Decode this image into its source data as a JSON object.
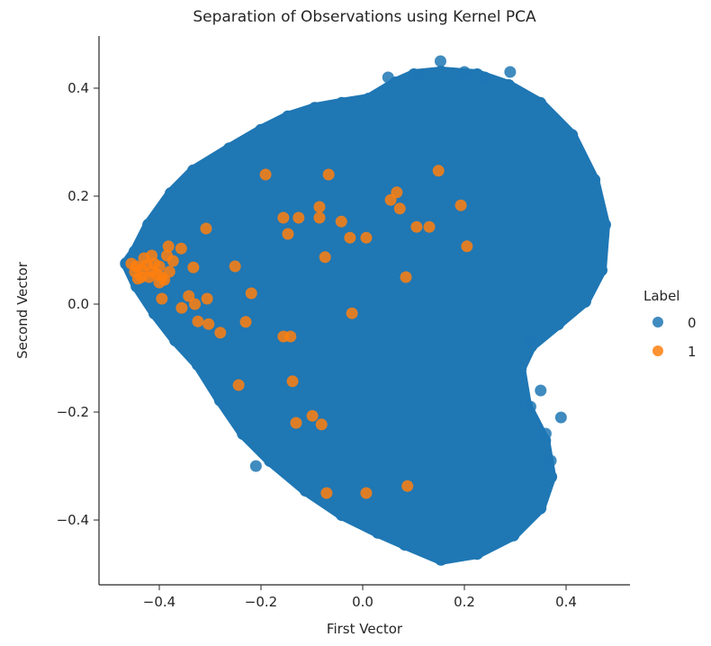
{
  "chart_data": {
    "type": "scatter",
    "title": "Separation of Observations using Kernel PCA",
    "xlabel": "First Vector",
    "ylabel": "Second Vector",
    "xlim": [
      -0.52,
      0.53
    ],
    "ylim": [
      -0.52,
      0.5
    ],
    "xticks": [
      -0.4,
      -0.2,
      0.0,
      0.2,
      0.4
    ],
    "xtick_labels": [
      "−0.4",
      "−0.2",
      "0.0",
      "0.2",
      "0.4"
    ],
    "yticks": [
      0.4,
      0.2,
      0.0,
      -0.2,
      -0.4
    ],
    "ytick_labels": [
      "0.4",
      "0.2",
      "0.0",
      "−0.2",
      "−0.4"
    ],
    "grid": false,
    "legend": {
      "title": "Label",
      "placement": "right",
      "entries": [
        "0",
        "1"
      ]
    },
    "series": [
      {
        "name": "0",
        "color": "#1f77b4",
        "note_region_outline": true,
        "region_outline": [
          [
            -0.465,
            0.075
          ],
          [
            -0.448,
            0.097
          ],
          [
            -0.421,
            0.147
          ],
          [
            -0.377,
            0.205
          ],
          [
            -0.333,
            0.247
          ],
          [
            -0.262,
            0.288
          ],
          [
            -0.2,
            0.322
          ],
          [
            -0.147,
            0.347
          ],
          [
            -0.094,
            0.363
          ],
          [
            -0.041,
            0.372
          ],
          [
            0.012,
            0.38
          ],
          [
            0.065,
            0.41
          ],
          [
            0.101,
            0.425
          ],
          [
            0.154,
            0.43
          ],
          [
            0.225,
            0.425
          ],
          [
            0.287,
            0.405
          ],
          [
            0.349,
            0.372
          ],
          [
            0.411,
            0.313
          ],
          [
            0.455,
            0.23
          ],
          [
            0.476,
            0.147
          ],
          [
            0.469,
            0.063
          ],
          [
            0.437,
            0.005
          ],
          [
            0.384,
            -0.037
          ],
          [
            0.331,
            -0.078
          ],
          [
            0.31,
            -0.12
          ],
          [
            0.322,
            -0.187
          ],
          [
            0.358,
            -0.253
          ],
          [
            0.37,
            -0.32
          ],
          [
            0.349,
            -0.378
          ],
          [
            0.296,
            -0.428
          ],
          [
            0.225,
            -0.462
          ],
          [
            0.154,
            -0.473
          ],
          [
            0.083,
            -0.445
          ],
          [
            0.03,
            -0.423
          ],
          [
            -0.041,
            -0.39
          ],
          [
            -0.112,
            -0.345
          ],
          [
            -0.182,
            -0.29
          ],
          [
            -0.235,
            -0.24
          ],
          [
            -0.28,
            -0.178
          ],
          [
            -0.324,
            -0.112
          ],
          [
            -0.368,
            -0.067
          ],
          [
            -0.409,
            -0.017
          ],
          [
            -0.444,
            0.033
          ]
        ],
        "outliers": [
          [
            0.153,
            0.45
          ],
          [
            0.29,
            0.43
          ],
          [
            0.2,
            0.43
          ],
          [
            0.11,
            0.425
          ],
          [
            0.05,
            0.42
          ],
          [
            0.24,
            0.42
          ],
          [
            0.33,
            -0.19
          ],
          [
            0.35,
            -0.16
          ],
          [
            0.39,
            -0.21
          ],
          [
            0.36,
            -0.24
          ],
          [
            0.33,
            -0.07
          ],
          [
            -0.21,
            -0.3
          ],
          [
            0.37,
            -0.29
          ]
        ]
      },
      {
        "name": "1",
        "color": "#ff7f0e",
        "points": [
          [
            -0.191,
            0.24
          ],
          [
            -0.067,
            0.24
          ],
          [
            0.149,
            0.247
          ],
          [
            -0.156,
            0.16
          ],
          [
            -0.126,
            0.16
          ],
          [
            -0.085,
            0.18
          ],
          [
            -0.085,
            0.16
          ],
          [
            -0.042,
            0.153
          ],
          [
            -0.147,
            0.13
          ],
          [
            -0.025,
            0.123
          ],
          [
            0.007,
            0.123
          ],
          [
            0.067,
            0.207
          ],
          [
            0.055,
            0.193
          ],
          [
            0.073,
            0.177
          ],
          [
            0.106,
            0.143
          ],
          [
            0.131,
            0.143
          ],
          [
            0.193,
            0.183
          ],
          [
            0.205,
            0.107
          ],
          [
            -0.308,
            0.14
          ],
          [
            -0.074,
            0.087
          ],
          [
            -0.251,
            0.07
          ],
          [
            0.085,
            0.05
          ],
          [
            -0.219,
            0.02
          ],
          [
            -0.021,
            -0.017
          ],
          [
            -0.23,
            -0.033
          ],
          [
            -0.28,
            -0.053
          ],
          [
            -0.156,
            -0.06
          ],
          [
            -0.142,
            -0.06
          ],
          [
            -0.244,
            -0.15
          ],
          [
            -0.138,
            -0.143
          ],
          [
            -0.099,
            -0.207
          ],
          [
            -0.131,
            -0.22
          ],
          [
            -0.081,
            -0.223
          ],
          [
            -0.071,
            -0.35
          ],
          [
            0.007,
            -0.35
          ],
          [
            0.088,
            -0.337
          ],
          [
            -0.382,
            0.107
          ],
          [
            -0.357,
            0.103
          ],
          [
            -0.333,
            0.068
          ],
          [
            -0.373,
            0.08
          ],
          [
            -0.442,
            0.047
          ],
          [
            -0.395,
            0.01
          ],
          [
            -0.342,
            0.015
          ],
          [
            -0.306,
            0.01
          ],
          [
            -0.356,
            -0.007
          ],
          [
            -0.33,
            0.0
          ],
          [
            -0.324,
            -0.032
          ],
          [
            -0.303,
            -0.037
          ],
          [
            -0.455,
            0.075
          ],
          [
            -0.445,
            0.07
          ],
          [
            -0.435,
            0.065
          ],
          [
            -0.425,
            0.072
          ],
          [
            -0.415,
            0.06
          ],
          [
            -0.405,
            0.055
          ],
          [
            -0.395,
            0.05
          ],
          [
            -0.43,
            0.085
          ],
          [
            -0.42,
            0.05
          ],
          [
            -0.41,
            0.075
          ],
          [
            -0.4,
            0.07
          ],
          [
            -0.39,
            0.045
          ],
          [
            -0.448,
            0.06
          ],
          [
            -0.435,
            0.05
          ],
          [
            -0.415,
            0.09
          ],
          [
            -0.38,
            0.06
          ],
          [
            -0.4,
            0.04
          ],
          [
            -0.385,
            0.09
          ]
        ]
      }
    ]
  }
}
